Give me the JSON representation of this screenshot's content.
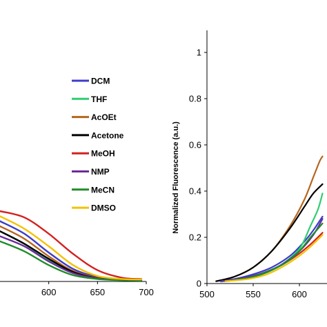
{
  "chart_data": [
    {
      "type": "line",
      "title": "",
      "xlabel": "",
      "ylabel": "",
      "xlim": [
        550,
        700
      ],
      "ylim": [
        0,
        1
      ],
      "x_ticks": [
        600,
        650,
        700
      ],
      "grid": false,
      "legend_placement": "center-right",
      "series": [
        {
          "name": "DCM",
          "color": "#3c3cc8",
          "points": [
            [
              550,
              0.24
            ],
            [
              575,
              0.19
            ],
            [
              600,
              0.115
            ],
            [
              625,
              0.05
            ],
            [
              650,
              0.018
            ],
            [
              675,
              0.008
            ],
            [
              695,
              0.005
            ]
          ]
        },
        {
          "name": "THF",
          "color": "#2ecc71",
          "points": [
            [
              550,
              0.2
            ],
            [
              575,
              0.15
            ],
            [
              600,
              0.085
            ],
            [
              625,
              0.035
            ],
            [
              650,
              0.012
            ],
            [
              675,
              0.006
            ],
            [
              695,
              0.004
            ]
          ]
        },
        {
          "name": "AcOEt",
          "color": "#b5651d",
          "points": [
            [
              550,
              0.22
            ],
            [
              575,
              0.17
            ],
            [
              600,
              0.1
            ],
            [
              625,
              0.042
            ],
            [
              650,
              0.015
            ],
            [
              675,
              0.007
            ],
            [
              695,
              0.005
            ]
          ]
        },
        {
          "name": "Acetone",
          "color": "#000000",
          "points": [
            [
              550,
              0.2
            ],
            [
              575,
              0.15
            ],
            [
              600,
              0.09
            ],
            [
              625,
              0.038
            ],
            [
              650,
              0.013
            ],
            [
              675,
              0.006
            ],
            [
              695,
              0.004
            ]
          ]
        },
        {
          "name": "MeOH",
          "color": "#d42020",
          "points": [
            [
              550,
              0.28
            ],
            [
              575,
              0.255
            ],
            [
              600,
              0.19
            ],
            [
              625,
              0.11
            ],
            [
              650,
              0.045
            ],
            [
              675,
              0.015
            ],
            [
              695,
              0.01
            ]
          ]
        },
        {
          "name": "NMP",
          "color": "#6a2c9a",
          "points": [
            [
              550,
              0.18
            ],
            [
              575,
              0.14
            ],
            [
              600,
              0.08
            ],
            [
              625,
              0.033
            ],
            [
              650,
              0.012
            ],
            [
              675,
              0.006
            ],
            [
              695,
              0.004
            ]
          ]
        },
        {
          "name": "MeCN",
          "color": "#1e8c28",
          "points": [
            [
              550,
              0.16
            ],
            [
              575,
              0.12
            ],
            [
              600,
              0.065
            ],
            [
              625,
              0.025
            ],
            [
              650,
              0.01
            ],
            [
              675,
              0.005
            ],
            [
              695,
              0.004
            ]
          ]
        },
        {
          "name": "DMSO",
          "color": "#f2c200",
          "points": [
            [
              550,
              0.26
            ],
            [
              575,
              0.21
            ],
            [
              600,
              0.14
            ],
            [
              625,
              0.065
            ],
            [
              650,
              0.022
            ],
            [
              675,
              0.01
            ],
            [
              695,
              0.008
            ]
          ]
        }
      ]
    },
    {
      "type": "line",
      "title": "",
      "xlabel": "",
      "ylabel": "Normalized Fluorescence (a.u.)",
      "xlim": [
        500,
        650
      ],
      "ylim": [
        0,
        1
      ],
      "x_ticks": [
        500,
        550,
        600
      ],
      "y_ticks": [
        0,
        0.2,
        0.4,
        0.6,
        0.8,
        1
      ],
      "y_tick_labels": [
        "0",
        "0.2",
        "0.4",
        "0.6",
        "0.8",
        "1"
      ],
      "grid": false,
      "series": [
        {
          "name": "DCM",
          "color": "#3c3cc8",
          "points": [
            [
              510,
              0.01
            ],
            [
              530,
              0.02
            ],
            [
              550,
              0.04
            ],
            [
              570,
              0.07
            ],
            [
              590,
              0.12
            ],
            [
              605,
              0.18
            ],
            [
              615,
              0.23
            ],
            [
              625,
              0.29
            ]
          ]
        },
        {
          "name": "THF",
          "color": "#2ecc71",
          "points": [
            [
              515,
              0.008
            ],
            [
              540,
              0.02
            ],
            [
              560,
              0.04
            ],
            [
              580,
              0.08
            ],
            [
              600,
              0.15
            ],
            [
              612,
              0.25
            ],
            [
              620,
              0.32
            ],
            [
              625,
              0.39
            ]
          ]
        },
        {
          "name": "AcOEt",
          "color": "#b5651d",
          "points": [
            [
              510,
              0.01
            ],
            [
              530,
              0.03
            ],
            [
              550,
              0.07
            ],
            [
              570,
              0.14
            ],
            [
              590,
              0.25
            ],
            [
              605,
              0.36
            ],
            [
              615,
              0.46
            ],
            [
              622,
              0.53
            ],
            [
              625,
              0.55
            ]
          ]
        },
        {
          "name": "Acetone",
          "color": "#000000",
          "points": [
            [
              510,
              0.01
            ],
            [
              530,
              0.03
            ],
            [
              550,
              0.07
            ],
            [
              570,
              0.14
            ],
            [
              590,
              0.24
            ],
            [
              605,
              0.33
            ],
            [
              615,
              0.39
            ],
            [
              625,
              0.43
            ]
          ]
        },
        {
          "name": "MeOH",
          "color": "#d42020",
          "points": [
            [
              520,
              0.01
            ],
            [
              545,
              0.025
            ],
            [
              565,
              0.05
            ],
            [
              585,
              0.09
            ],
            [
              600,
              0.13
            ],
            [
              612,
              0.17
            ],
            [
              625,
              0.22
            ]
          ]
        },
        {
          "name": "NMP",
          "color": "#6a2c9a",
          "points": [
            [
              515,
              0.01
            ],
            [
              540,
              0.025
            ],
            [
              560,
              0.045
            ],
            [
              580,
              0.08
            ],
            [
              600,
              0.14
            ],
            [
              615,
              0.21
            ],
            [
              625,
              0.28
            ]
          ]
        },
        {
          "name": "MeCN",
          "color": "#1e8c28",
          "points": [
            [
              520,
              0.01
            ],
            [
              545,
              0.025
            ],
            [
              565,
              0.05
            ],
            [
              585,
              0.09
            ],
            [
              600,
              0.14
            ],
            [
              612,
              0.2
            ],
            [
              625,
              0.26
            ]
          ]
        },
        {
          "name": "DMSO",
          "color": "#f2c200",
          "points": [
            [
              520,
              0.01
            ],
            [
              545,
              0.02
            ],
            [
              565,
              0.04
            ],
            [
              585,
              0.08
            ],
            [
              600,
              0.12
            ],
            [
              612,
              0.16
            ],
            [
              625,
              0.21
            ]
          ]
        }
      ]
    }
  ]
}
